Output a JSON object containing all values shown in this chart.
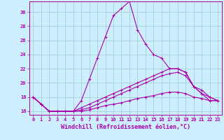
{
  "xlabel": "Windchill (Refroidissement éolien,°C)",
  "background_color": "#cceeff",
  "grid_color": "#99cccc",
  "line_color": "#aa00aa",
  "xlim": [
    -0.5,
    23.5
  ],
  "ylim": [
    15.5,
    31.5
  ],
  "xticks": [
    0,
    1,
    2,
    3,
    4,
    5,
    6,
    7,
    8,
    9,
    10,
    11,
    12,
    13,
    14,
    15,
    16,
    17,
    18,
    19,
    20,
    21,
    22,
    23
  ],
  "yticks": [
    16,
    18,
    20,
    22,
    24,
    26,
    28,
    30
  ],
  "line1_x": [
    0,
    1,
    2,
    3,
    4,
    5,
    6,
    7,
    8,
    9,
    10,
    11,
    12,
    13,
    14,
    15,
    16,
    17,
    18,
    19,
    20,
    21,
    22,
    23
  ],
  "line1_y": [
    18.0,
    17.0,
    16.0,
    16.0,
    16.0,
    16.0,
    17.5,
    20.5,
    23.5,
    26.5,
    29.5,
    30.5,
    31.5,
    27.5,
    25.5,
    24.0,
    23.5,
    22.0,
    22.0,
    21.5,
    19.5,
    19.0,
    18.0,
    17.5
  ],
  "line2_x": [
    0,
    1,
    2,
    3,
    4,
    5,
    6,
    7,
    8,
    9,
    10,
    11,
    12,
    13,
    14,
    15,
    16,
    17,
    18,
    19,
    20,
    21,
    22,
    23
  ],
  "line2_y": [
    18.0,
    17.0,
    16.0,
    16.0,
    16.0,
    16.0,
    16.5,
    17.0,
    17.5,
    18.0,
    18.5,
    19.0,
    19.5,
    20.0,
    20.5,
    21.0,
    21.5,
    22.0,
    22.0,
    21.5,
    19.5,
    18.5,
    18.0,
    17.5
  ],
  "line3_x": [
    0,
    1,
    2,
    3,
    4,
    5,
    6,
    7,
    8,
    9,
    10,
    11,
    12,
    13,
    14,
    15,
    16,
    17,
    18,
    19,
    20,
    21,
    22,
    23
  ],
  "line3_y": [
    18.0,
    17.0,
    16.0,
    16.0,
    16.0,
    16.0,
    16.2,
    16.5,
    17.0,
    17.5,
    18.0,
    18.5,
    19.0,
    19.5,
    20.0,
    20.5,
    21.0,
    21.3,
    21.5,
    21.0,
    19.5,
    18.5,
    17.5,
    17.5
  ],
  "line4_x": [
    0,
    1,
    2,
    3,
    4,
    5,
    6,
    7,
    8,
    9,
    10,
    11,
    12,
    13,
    14,
    15,
    16,
    17,
    18,
    19,
    20,
    21,
    22,
    23
  ],
  "line4_y": [
    18.0,
    17.0,
    16.0,
    16.0,
    16.0,
    16.0,
    16.0,
    16.2,
    16.5,
    16.8,
    17.0,
    17.2,
    17.5,
    17.8,
    18.0,
    18.2,
    18.5,
    18.7,
    18.7,
    18.5,
    18.0,
    17.8,
    17.5,
    17.5
  ],
  "marker_size": 3,
  "line_width": 0.8,
  "tick_fontsize": 5.0,
  "xlabel_fontsize": 6.0
}
